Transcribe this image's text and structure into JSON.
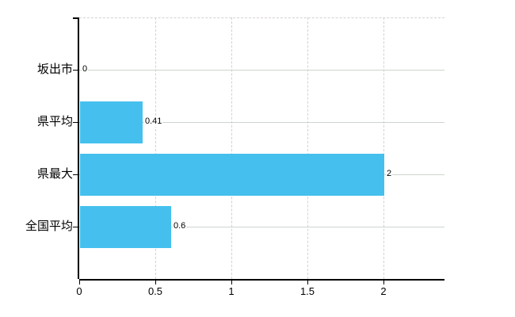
{
  "chart_data": {
    "type": "bar",
    "orientation": "horizontal",
    "title": "",
    "categories": [
      "坂出市",
      "県平均",
      "県最大",
      "全国平均"
    ],
    "values": [
      0,
      0.41,
      2,
      0.6
    ],
    "value_labels": [
      "0",
      "0.41",
      "2",
      "0.6"
    ],
    "x_tick_labels": [
      "0",
      "0.5",
      "1",
      "1.5",
      "2"
    ],
    "x_tick_values": [
      0,
      0.5,
      1,
      1.5,
      2
    ],
    "xlim": [
      0,
      2.4
    ],
    "grid": true,
    "legend_position": "none"
  },
  "colors": {
    "bar": "#45c0ee",
    "axis": "#000000",
    "grid_horizontal": "#cdd5cd",
    "grid_vertical": "#d6cfd6",
    "background": "#ffffff",
    "text": "#000000"
  }
}
